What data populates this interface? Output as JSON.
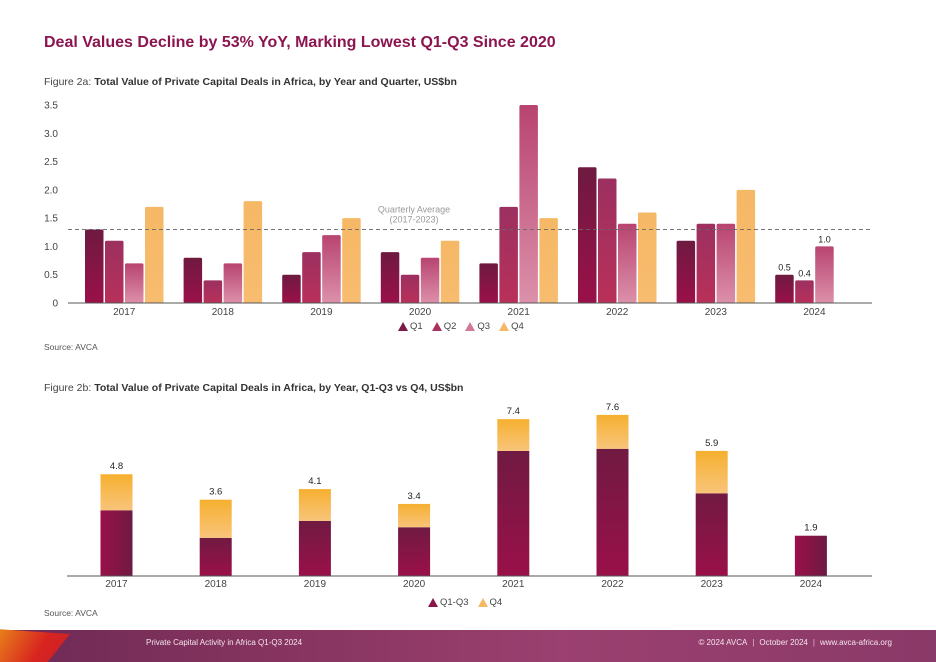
{
  "page": {
    "title": "Deal Values Decline by 53% YoY, Marking Lowest Q1-Q3 Since 2020",
    "figure_a": {
      "label": "Figure 2a: ",
      "title": "Total Value of Private Capital Deals in Africa, by Year and Quarter, US$bn",
      "source": "Source: AVCA"
    },
    "figure_b": {
      "label": "Figure 2b: ",
      "title": "Total Value of Private Capital Deals in Africa, by Year, Q1-Q3 vs Q4, US$bn",
      "source": "Source: AVCA"
    },
    "footer": {
      "left": "Private Capital Activity in Africa Q1-Q3 2024",
      "copyright": "© 2024 AVCA",
      "date": "October 2024",
      "website": "www.avca-africa.org",
      "separator": "|"
    }
  },
  "chart_data": [
    {
      "type": "bar",
      "title": "Total Value of Private Capital Deals in Africa, by Year and Quarter, US$bn",
      "xlabel": "",
      "ylabel": "US$bn",
      "categories": [
        "2017",
        "2018",
        "2019",
        "2020",
        "2021",
        "2022",
        "2023",
        "2024"
      ],
      "series": [
        {
          "name": "Q1",
          "color": "#7a1a45",
          "values": [
            1.3,
            0.8,
            0.5,
            0.9,
            0.7,
            2.4,
            1.1,
            0.5
          ]
        },
        {
          "name": "Q2",
          "color": "#a8325f",
          "values": [
            1.1,
            0.4,
            0.9,
            0.5,
            1.7,
            2.2,
            1.4,
            0.4
          ]
        },
        {
          "name": "Q3",
          "color": "#c45a80",
          "values": [
            0.7,
            0.7,
            1.2,
            0.8,
            3.5,
            1.4,
            1.4,
            1.0
          ]
        },
        {
          "name": "Q4",
          "color": "#f5b865",
          "values": [
            1.7,
            1.8,
            1.5,
            1.1,
            1.5,
            1.6,
            2.0,
            null
          ]
        }
      ],
      "data_labels": {
        "2024": [
          "0.5",
          "0.4",
          "1.0"
        ]
      },
      "ylim": [
        0,
        3.5
      ],
      "yticks": [
        "0",
        "0.5",
        "1.0",
        "1.5",
        "2.0",
        "2.5",
        "3.0",
        "3.5"
      ],
      "ytick_values": [
        0,
        0.5,
        1.0,
        1.5,
        2.0,
        2.5,
        3.0,
        3.5
      ],
      "reference_line": {
        "value": 1.3,
        "label_line1": "Quarterly Average",
        "label_line2": "(2017-2023)",
        "style": "dashed"
      },
      "grid": false,
      "legend": "bottom-center"
    },
    {
      "type": "bar",
      "stacked": true,
      "title": "Total Value of Private Capital Deals in Africa, by Year, Q1-Q3 vs Q4, US$bn",
      "xlabel": "",
      "ylabel": "US$bn",
      "categories": [
        "2017",
        "2018",
        "2019",
        "2020",
        "2021",
        "2022",
        "2023",
        "2024"
      ],
      "series": [
        {
          "name": "Q1-Q3",
          "color": "#7a1a45",
          "values": [
            3.1,
            1.8,
            2.6,
            2.3,
            5.9,
            6.0,
            3.9,
            1.9
          ]
        },
        {
          "name": "Q4",
          "color": "#f5b865",
          "values": [
            1.7,
            1.8,
            1.5,
            1.1,
            1.5,
            1.6,
            2.0,
            0
          ]
        }
      ],
      "totals": [
        "4.8",
        "3.6",
        "4.1",
        "3.4",
        "7.4",
        "7.6",
        "5.9",
        "1.9"
      ],
      "ylim": [
        0,
        8.3
      ],
      "grid": false,
      "legend": "bottom-center"
    }
  ]
}
